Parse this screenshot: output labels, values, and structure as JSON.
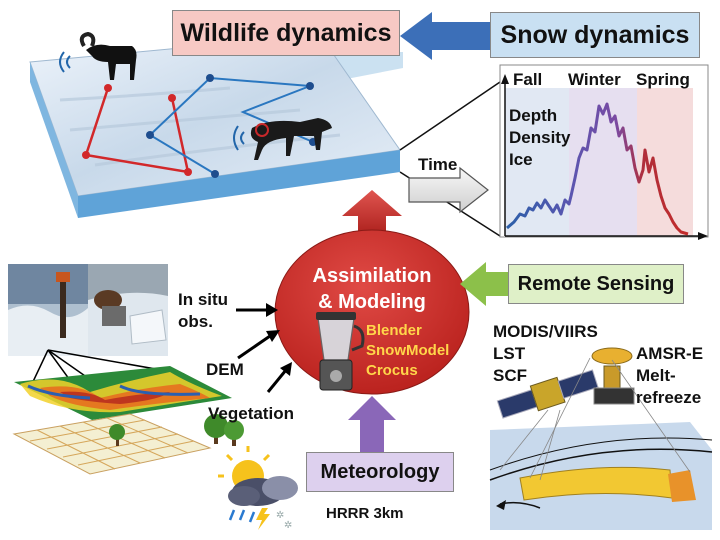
{
  "boxes": {
    "wildlife": "Wildlife dynamics",
    "snow": "Snow dynamics",
    "remote_sensing": "Remote Sensing",
    "meteorology": "Meteorology"
  },
  "center": {
    "title_line1": "Assimilation",
    "title_line2": "& Modeling",
    "models": [
      "Blender",
      "SnowModel",
      "Crocus"
    ]
  },
  "chart": {
    "seasons": [
      "Fall",
      "Winter",
      "Spring"
    ],
    "properties": [
      "Depth",
      "Density",
      "Ice"
    ],
    "time_label": "Time"
  },
  "inputs": {
    "in_situ_line1": "In situ",
    "in_situ_line2": "obs.",
    "dem": "DEM",
    "vegetation": "Vegetation"
  },
  "satellites": {
    "modis_line1": "MODIS/VIIRS",
    "modis_line2": "LST",
    "modis_line3": "SCF",
    "amsr_line1": "AMSR-E",
    "amsr_line2": "Melt-",
    "amsr_line3": "refreeze"
  },
  "hrrr": "HRRR 3km",
  "colors": {
    "wildlife_box": "#f7c9c4",
    "snow_box": "#c9e0f2",
    "remote_box": "#dff0c8",
    "meteo_box": "#ddd0ee",
    "arrow_blue": "#3c6fb8",
    "arrow_red": "#c0302a",
    "arrow_green": "#8cc04a",
    "arrow_purple": "#8a67b8",
    "center_ellipse": "#c62a26"
  },
  "icons": [
    "blender-icon",
    "satellite-icon",
    "weather-icon",
    "bighorn-sheep-icon",
    "wolf-icon",
    "tree-icon"
  ]
}
